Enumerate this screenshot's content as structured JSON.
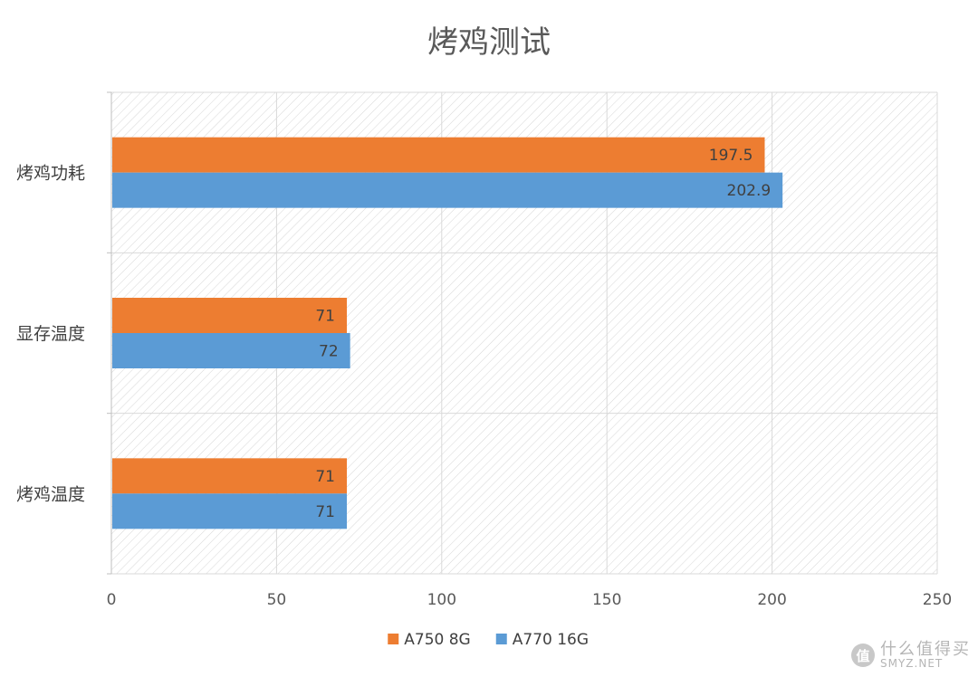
{
  "chart_data": {
    "type": "bar",
    "orientation": "horizontal",
    "title": "烤鸡测试",
    "categories": [
      "烤鸡功耗",
      "显存温度",
      "烤鸡温度"
    ],
    "series": [
      {
        "name": "A750 8G",
        "color": "#ED7D31",
        "values": [
          197.5,
          71,
          71
        ]
      },
      {
        "name": "A770 16G",
        "color": "#5B9BD5",
        "values": [
          202.9,
          72,
          71
        ]
      }
    ],
    "xlim": [
      0,
      250
    ],
    "xticks": [
      0,
      50,
      100,
      150,
      200,
      250
    ],
    "grid": true,
    "legend": "bottom",
    "data_labels": true
  },
  "watermark": {
    "badge": "值",
    "text_cn": "什么值得买",
    "text_en": "SMYZ.NET"
  }
}
